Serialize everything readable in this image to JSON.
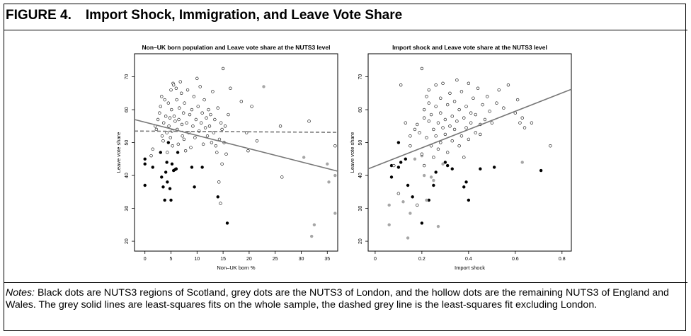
{
  "figure": {
    "number": "FIGURE 4.",
    "title": "Import Shock, Immigration, and Leave Vote Share",
    "notes_label": "Notes:",
    "notes_text": "Black dots are NUTS3 regions of Scotland, grey dots are the NUTS3 of London, and the hollow dots are the remaining NUTS3 of England and Wales. The grey solid lines are least-squares fits on the whole sample, the dashed grey line is the least-squares fit excluding London."
  },
  "colors": {
    "scotland": "#000000",
    "london": "#a6a6a6",
    "england_wales": "#ffffff",
    "fit_line": "#777777"
  },
  "chart_data": [
    {
      "type": "scatter",
      "title": "Non–UK born population and Leave vote share at the NUTS3 level",
      "xlabel": "Non–UK born %",
      "ylabel": "Leave vote share",
      "xlim": [
        -2,
        37
      ],
      "ylim": [
        17,
        77
      ],
      "xticks": [
        0,
        5,
        10,
        15,
        20,
        25,
        30,
        35
      ],
      "yticks": [
        20,
        30,
        40,
        50,
        60,
        70
      ],
      "grid": false,
      "fit_lines": [
        {
          "style": "solid",
          "x": [
            -2,
            37
          ],
          "y": [
            57,
            41.3
          ]
        },
        {
          "style": "dashed",
          "x": [
            -2,
            37
          ],
          "y": [
            53.5,
            53.1
          ]
        }
      ],
      "series": [
        {
          "group": "scotland",
          "points": [
            [
              0,
              45
            ],
            [
              0,
              43.5
            ],
            [
              0,
              37
            ],
            [
              1.5,
              42.5
            ],
            [
              3,
              47
            ],
            [
              3.2,
              39.5
            ],
            [
              3.5,
              36.5
            ],
            [
              3.8,
              32.5
            ],
            [
              4,
              41
            ],
            [
              4.2,
              44
            ],
            [
              4.3,
              38
            ],
            [
              4.5,
              50
            ],
            [
              4.8,
              36
            ],
            [
              5,
              32.5
            ],
            [
              5.2,
              43.5
            ],
            [
              5.5,
              41.5
            ],
            [
              5.8,
              41.8
            ],
            [
              6,
              42
            ],
            [
              6.3,
              47
            ],
            [
              9,
              42.5
            ],
            [
              9.5,
              36.5
            ],
            [
              11,
              42.5
            ],
            [
              14,
              33.5
            ],
            [
              15.8,
              25.5
            ]
          ]
        },
        {
          "group": "london",
          "points": [
            [
              22.8,
              67
            ],
            [
              30.5,
              45.5
            ],
            [
              32,
              21.5
            ],
            [
              32.5,
              25
            ],
            [
              35,
              43.5
            ],
            [
              35.3,
              38
            ],
            [
              36.5,
              40
            ],
            [
              36.5,
              28.5
            ]
          ]
        },
        {
          "group": "england_wales",
          "points": [
            [
              1.2,
              46
            ],
            [
              1.5,
              48
            ],
            [
              2,
              55
            ],
            [
              2.2,
              54
            ],
            [
              2.5,
              57
            ],
            [
              2.8,
              59
            ],
            [
              3,
              61
            ],
            [
              3.2,
              64
            ],
            [
              3.3,
              52
            ],
            [
              3.5,
              50.5
            ],
            [
              3.6,
              56
            ],
            [
              3.8,
              63
            ],
            [
              4,
              58
            ],
            [
              4.2,
              53
            ],
            [
              4.3,
              47
            ],
            [
              4.5,
              62
            ],
            [
              4.6,
              55
            ],
            [
              4.8,
              57.5
            ],
            [
              4.9,
              51.5
            ],
            [
              5,
              66
            ],
            [
              5.1,
              60
            ],
            [
              5.2,
              53.5
            ],
            [
              5.3,
              49
            ],
            [
              5.4,
              68
            ],
            [
              5.5,
              67.5
            ],
            [
              5.6,
              58
            ],
            [
              5.8,
              56.5
            ],
            [
              6,
              66.5
            ],
            [
              6.1,
              63
            ],
            [
              6.2,
              54
            ],
            [
              6.4,
              49.5
            ],
            [
              6.5,
              57
            ],
            [
              6.6,
              60.5
            ],
            [
              6.8,
              68.5
            ],
            [
              7,
              65
            ],
            [
              7.1,
              55.5
            ],
            [
              7.2,
              52
            ],
            [
              7.4,
              59
            ],
            [
              7.5,
              51
            ],
            [
              7.6,
              62
            ],
            [
              7.8,
              47.5
            ],
            [
              8,
              56
            ],
            [
              8.2,
              66
            ],
            [
              8.4,
              53
            ],
            [
              8.6,
              58.5
            ],
            [
              8.8,
              48.5
            ],
            [
              9,
              60
            ],
            [
              9.2,
              55
            ],
            [
              9.4,
              64
            ],
            [
              9.6,
              51.5
            ],
            [
              9.8,
              57
            ],
            [
              10,
              69.5
            ],
            [
              10.2,
              61
            ],
            [
              10.4,
              53.5
            ],
            [
              10.6,
              67
            ],
            [
              10.8,
              56
            ],
            [
              11,
              59
            ],
            [
              11.2,
              49.5
            ],
            [
              11.4,
              63
            ],
            [
              11.6,
              54.5
            ],
            [
              11.8,
              57.5
            ],
            [
              12,
              52
            ],
            [
              12.2,
              60
            ],
            [
              12.4,
              55
            ],
            [
              12.6,
              58.5
            ],
            [
              12.8,
              50
            ],
            [
              13,
              65.5
            ],
            [
              13.2,
              53
            ],
            [
              13.4,
              57
            ],
            [
              13.6,
              49
            ],
            [
              13.8,
              47
            ],
            [
              14,
              60.5
            ],
            [
              14.3,
              51
            ],
            [
              14.6,
              56
            ],
            [
              14.8,
              54
            ],
            [
              15,
              72.5
            ],
            [
              15.2,
              50
            ],
            [
              15.4,
              55
            ],
            [
              15.6,
              46.5
            ],
            [
              16,
              58.5
            ],
            [
              16.4,
              66.5
            ],
            [
              18.5,
              62.5
            ],
            [
              19.5,
              53
            ],
            [
              19.8,
              47.5
            ],
            [
              20.5,
              61
            ],
            [
              21.5,
              50.5
            ],
            [
              26,
              55
            ],
            [
              26.3,
              39.5
            ],
            [
              31.5,
              56.5
            ],
            [
              36.5,
              49
            ],
            [
              14.5,
              31.5
            ],
            [
              14.8,
              43.5
            ],
            [
              14.2,
              38
            ]
          ]
        }
      ]
    },
    {
      "type": "scatter",
      "title": "Import shock and Leave vote share at the NUTS3 level",
      "xlabel": "Import shock",
      "ylabel": "Leave vote share",
      "xlim": [
        -0.03,
        0.84
      ],
      "ylim": [
        17,
        77
      ],
      "xticks": [
        0.0,
        0.2,
        0.4,
        0.6,
        0.8
      ],
      "yticks": [
        20,
        30,
        40,
        50,
        60,
        70
      ],
      "grid": false,
      "fit_lines": [
        {
          "style": "solid",
          "x": [
            -0.03,
            0.84
          ],
          "y": [
            42,
            66.2
          ]
        }
      ],
      "series": [
        {
          "group": "scotland",
          "points": [
            [
              0.07,
              39.5
            ],
            [
              0.07,
              43
            ],
            [
              0.1,
              42.5
            ],
            [
              0.11,
              44
            ],
            [
              0.13,
              45
            ],
            [
              0.1,
              50
            ],
            [
              0.14,
              37
            ],
            [
              0.16,
              33.5
            ],
            [
              0.2,
              25.5
            ],
            [
              0.23,
              32.5
            ],
            [
              0.25,
              37
            ],
            [
              0.26,
              41
            ],
            [
              0.3,
              44
            ],
            [
              0.31,
              43
            ],
            [
              0.33,
              42
            ],
            [
              0.38,
              36.5
            ],
            [
              0.39,
              38
            ],
            [
              0.4,
              32.5
            ],
            [
              0.45,
              42
            ],
            [
              0.51,
              42.5
            ],
            [
              0.71,
              41.5
            ]
          ]
        },
        {
          "group": "london",
          "points": [
            [
              0.06,
              31
            ],
            [
              0.06,
              25
            ],
            [
              0.12,
              32
            ],
            [
              0.15,
              28.5
            ],
            [
              0.17,
              45
            ],
            [
              0.2,
              46
            ],
            [
              0.21,
              40
            ],
            [
              0.22,
              32.5
            ],
            [
              0.24,
              39.5
            ],
            [
              0.25,
              38.5
            ],
            [
              0.27,
              24.5
            ],
            [
              0.29,
              43.5
            ],
            [
              0.14,
              21
            ],
            [
              0.63,
              44
            ]
          ]
        },
        {
          "group": "england_wales",
          "points": [
            [
              0.08,
              43
            ],
            [
              0.1,
              34.5
            ],
            [
              0.11,
              67.5
            ],
            [
              0.13,
              56
            ],
            [
              0.15,
              52
            ],
            [
              0.15,
              49
            ],
            [
              0.17,
              54
            ],
            [
              0.18,
              31
            ],
            [
              0.18,
              55.5
            ],
            [
              0.19,
              53
            ],
            [
              0.2,
              72.5
            ],
            [
              0.2,
              46.5
            ],
            [
              0.21,
              60
            ],
            [
              0.21,
              57.5
            ],
            [
              0.21,
              43
            ],
            [
              0.22,
              64
            ],
            [
              0.22,
              51.5
            ],
            [
              0.23,
              66
            ],
            [
              0.23,
              56.5
            ],
            [
              0.23,
              62
            ],
            [
              0.24,
              49
            ],
            [
              0.24,
              58.5
            ],
            [
              0.25,
              54
            ],
            [
              0.25,
              45.5
            ],
            [
              0.26,
              67.5
            ],
            [
              0.26,
              61
            ],
            [
              0.26,
              52
            ],
            [
              0.27,
              56
            ],
            [
              0.27,
              48
            ],
            [
              0.28,
              63.5
            ],
            [
              0.28,
              59
            ],
            [
              0.28,
              50
            ],
            [
              0.29,
              54.5
            ],
            [
              0.29,
              68
            ],
            [
              0.3,
              57
            ],
            [
              0.3,
              52.5
            ],
            [
              0.31,
              61.5
            ],
            [
              0.31,
              47
            ],
            [
              0.32,
              55
            ],
            [
              0.32,
              65
            ],
            [
              0.33,
              58
            ],
            [
              0.33,
              50.5
            ],
            [
              0.34,
              62.5
            ],
            [
              0.34,
              54
            ],
            [
              0.35,
              69
            ],
            [
              0.35,
              56.5
            ],
            [
              0.36,
              49
            ],
            [
              0.36,
              60
            ],
            [
              0.37,
              52
            ],
            [
              0.37,
              65.5
            ],
            [
              0.38,
              57.5
            ],
            [
              0.38,
              45.5
            ],
            [
              0.39,
              61
            ],
            [
              0.39,
              54.5
            ],
            [
              0.4,
              68
            ],
            [
              0.4,
              51
            ],
            [
              0.41,
              59
            ],
            [
              0.41,
              56
            ],
            [
              0.42,
              63.5
            ],
            [
              0.43,
              53
            ],
            [
              0.43,
              58.5
            ],
            [
              0.44,
              66.5
            ],
            [
              0.45,
              55.5
            ],
            [
              0.45,
              52.5
            ],
            [
              0.46,
              61.5
            ],
            [
              0.47,
              57
            ],
            [
              0.48,
              64
            ],
            [
              0.49,
              59.5
            ],
            [
              0.5,
              56
            ],
            [
              0.52,
              62
            ],
            [
              0.53,
              66
            ],
            [
              0.55,
              60.5
            ],
            [
              0.57,
              67.5
            ],
            [
              0.6,
              59
            ],
            [
              0.61,
              63
            ],
            [
              0.62,
              56
            ],
            [
              0.63,
              57.5
            ],
            [
              0.64,
              54.5
            ],
            [
              0.67,
              56
            ],
            [
              0.75,
              49
            ]
          ]
        }
      ]
    }
  ]
}
